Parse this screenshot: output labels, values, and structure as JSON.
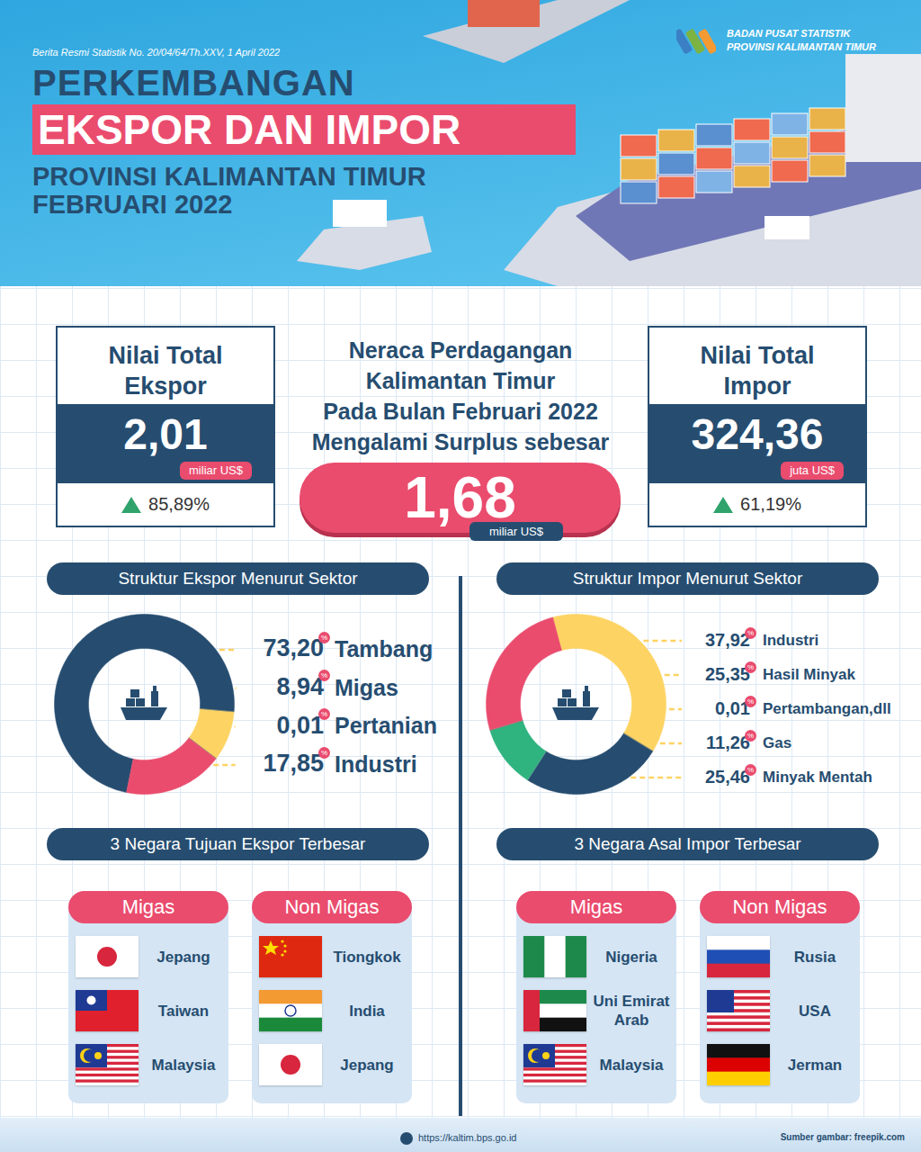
{
  "header": {
    "release": "Berita Resmi Statistik No. 20/04/64/Th.XXV, 1 April 2022",
    "agency": [
      "BADAN PUSAT STATISTIK",
      "PROVINSI KALIMANTAN TIMUR"
    ],
    "title": [
      "PERKEMBANGAN",
      "EKSPOR DAN IMPOR",
      "PROVINSI KALIMANTAN TIMUR",
      "FEBRUARI 2022"
    ]
  },
  "summary": {
    "export": {
      "title": [
        "Nilai Total",
        "Ekspor"
      ],
      "value": "2,01",
      "unit": "miliar US$",
      "change": "85,89%"
    },
    "balance": {
      "text": [
        "Neraca Perdagangan",
        "Kalimantan Timur",
        "Pada Bulan Februari 2022",
        "Mengalami Surplus sebesar"
      ],
      "value": "1,68",
      "unit": "miliar US$"
    },
    "import": {
      "title": [
        "Nilai Total",
        "Impor"
      ],
      "value": "324,36",
      "unit": "juta US$",
      "change": "61,19%"
    }
  },
  "chart_data": [
    {
      "type": "pie",
      "title": "Struktur Ekspor Menurut Sektor",
      "categories": [
        "Tambang",
        "Migas",
        "Pertanian",
        "Industri"
      ],
      "values": [
        73.2,
        8.94,
        0.01,
        17.85
      ],
      "value_labels": [
        "73,20",
        "8,94",
        "0,01",
        "17,85"
      ],
      "unit": "%",
      "colors": [
        "#264d70",
        "#fdd363",
        "#2fb37f",
        "#ea4c6e"
      ],
      "data_labels": true
    },
    {
      "type": "pie",
      "title": "Struktur Impor Menurut Sektor",
      "categories": [
        "Industri",
        "Hasil Minyak",
        "Pertambangan,dll",
        "Gas",
        "Minyak Mentah"
      ],
      "values": [
        37.92,
        25.35,
        0.01,
        11.26,
        25.46
      ],
      "value_labels": [
        "37,92",
        "25,35",
        "0,01",
        "11,26",
        "25,46"
      ],
      "unit": "%",
      "colors": [
        "#fdd363",
        "#264d70",
        "#8a9bb0",
        "#2fb37f",
        "#ea4c6e"
      ],
      "data_labels": true
    }
  ],
  "countries": [
    {
      "title": "3 Negara Tujuan Ekspor Terbesar",
      "groups": [
        {
          "name": "Migas",
          "countries": [
            "Jepang",
            "Taiwan",
            "Malaysia"
          ]
        },
        {
          "name": "Non Migas",
          "countries": [
            "Tiongkok",
            "India",
            "Jepang"
          ]
        }
      ]
    },
    {
      "title": "3 Negara Asal Impor Terbesar",
      "groups": [
        {
          "name": "Migas",
          "countries": [
            "Nigeria",
            "Uni Emirat Arab",
            "Malaysia"
          ]
        },
        {
          "name": "Non Migas",
          "countries": [
            "Rusia",
            "USA",
            "Jerman"
          ]
        }
      ]
    }
  ],
  "footer": {
    "url": "https://kaltim.bps.go.id",
    "credit": "Sumber gambar: freepik.com"
  }
}
